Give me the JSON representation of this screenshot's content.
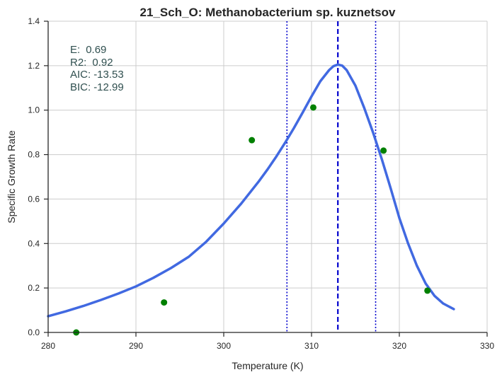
{
  "chart_data": {
    "type": "line",
    "title": "21_Sch_O: Methanobacterium sp. kuznetsov",
    "xlabel": "Temperature (K)",
    "ylabel": "Specific Growth Rate",
    "xlim": [
      280,
      330
    ],
    "ylim": [
      0.0,
      1.4
    ],
    "x_ticks": [
      280,
      290,
      300,
      310,
      320,
      330
    ],
    "y_ticks": [
      0.0,
      0.2,
      0.4,
      0.6,
      0.8,
      1.0,
      1.2,
      1.4
    ],
    "x_tick_labels": [
      "280",
      "290",
      "300",
      "310",
      "320",
      "330"
    ],
    "y_tick_labels": [
      "0.0",
      "0.2",
      "0.4",
      "0.6",
      "0.8",
      "1.0",
      "1.2",
      "1.4"
    ],
    "grid": true,
    "stats": [
      {
        "label": "E:",
        "value": "0.69"
      },
      {
        "label": "R2:",
        "value": "0.92"
      },
      {
        "label": "AIC:",
        "value": "-13.53"
      },
      {
        "label": "BIC:",
        "value": "-12.99"
      }
    ],
    "observed_points": {
      "color": "#008000",
      "x": [
        283.2,
        293.2,
        303.2,
        310.2,
        318.2,
        323.2
      ],
      "y": [
        0.0,
        0.135,
        0.865,
        1.012,
        0.818,
        0.188
      ]
    },
    "fitted_curve": {
      "color": "#4169e1",
      "x": [
        280,
        282,
        284,
        286,
        288,
        290,
        292,
        294,
        296,
        298,
        300,
        302,
        304,
        305,
        306,
        307,
        308,
        309,
        310,
        311,
        312,
        312.5,
        313,
        313.5,
        314,
        315,
        316,
        317,
        318,
        319,
        320,
        321,
        322,
        323,
        324,
        325,
        326.2
      ],
      "y": [
        0.073,
        0.095,
        0.119,
        0.146,
        0.175,
        0.207,
        0.246,
        0.29,
        0.34,
        0.408,
        0.49,
        0.58,
        0.68,
        0.734,
        0.792,
        0.854,
        0.92,
        0.99,
        1.062,
        1.13,
        1.18,
        1.198,
        1.205,
        1.2,
        1.18,
        1.11,
        1.01,
        0.9,
        0.78,
        0.65,
        0.515,
        0.4,
        0.3,
        0.22,
        0.165,
        0.13,
        0.105
      ]
    },
    "vertical_lines": [
      {
        "x": 313.0,
        "style": "dashed",
        "color": "#0000cd"
      },
      {
        "x": 307.2,
        "style": "dotted",
        "color": "#0000cd"
      },
      {
        "x": 317.3,
        "style": "dotted",
        "color": "#0000cd"
      }
    ],
    "colors": {
      "grid": "#cccccc",
      "axis": "#262626",
      "stat_text": "#2f4f4f"
    }
  }
}
